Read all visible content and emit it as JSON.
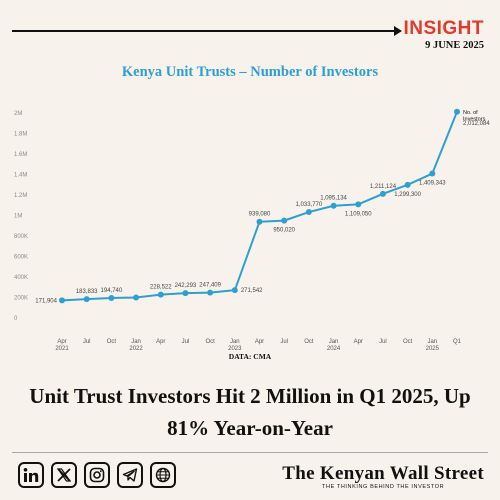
{
  "header": {
    "brand": "INSIGHT",
    "date": "9 JUNE 2025"
  },
  "chart_data": {
    "type": "line",
    "title": "Kenya Unit Trusts – Number of Investors",
    "xlabel": "",
    "ylabel": "",
    "ylim": [
      0,
      2000000
    ],
    "yticks": [
      0,
      200000,
      400000,
      600000,
      800000,
      1000000,
      1200000,
      1400000,
      1600000,
      1800000,
      2000000
    ],
    "ytick_labels": [
      "0",
      "200K",
      "400K",
      "600K",
      "800K",
      "1M",
      "1.2M",
      "1.4M",
      "1.6M",
      "1.8M",
      "2M"
    ],
    "xticks": [
      {
        "label": "Apr",
        "sub": "2021"
      },
      {
        "label": "Jul",
        "sub": ""
      },
      {
        "label": "Oct",
        "sub": ""
      },
      {
        "label": "Jan",
        "sub": "2022"
      },
      {
        "label": "Apr",
        "sub": ""
      },
      {
        "label": "Jul",
        "sub": ""
      },
      {
        "label": "Oct",
        "sub": ""
      },
      {
        "label": "Jan",
        "sub": "2023"
      },
      {
        "label": "Apr",
        "sub": ""
      },
      {
        "label": "Jul",
        "sub": ""
      },
      {
        "label": "Oct",
        "sub": ""
      },
      {
        "label": "Jan",
        "sub": "2024"
      },
      {
        "label": "Apr",
        "sub": ""
      },
      {
        "label": "Jul",
        "sub": ""
      },
      {
        "label": "Oct",
        "sub": ""
      },
      {
        "label": "Jan",
        "sub": "2025"
      },
      {
        "label": "Q1",
        "sub": ""
      }
    ],
    "series": [
      {
        "color": "#2f9fd0",
        "values": [
          171904,
          183833,
          194740,
          200000,
          228522,
          242293,
          247409,
          271542,
          939080,
          950020,
          1033770,
          1095134,
          1109050,
          1211124,
          1299300,
          1409343,
          2012084
        ],
        "labels": [
          "171,904",
          "183,833",
          "194,740",
          "",
          "228,522",
          "242,293",
          "247,409",
          "271,542",
          "939,080",
          "950,020",
          "1,033,770",
          "1,095,134",
          "1,109,050",
          "1,211,124",
          "1,299,300",
          "1,409,343",
          "2,012,084"
        ],
        "label_pos": [
          "left",
          "above",
          "above",
          "",
          "above",
          "above",
          "above",
          "right",
          "above",
          "below",
          "above",
          "above",
          "below",
          "above",
          "below",
          "below",
          "right"
        ]
      }
    ],
    "annotation": "No. of\nInvestors",
    "grid": false,
    "legend": "none"
  },
  "source": "DATA: CMA",
  "headline": "Unit Trust Investors Hit 2 Million in Q1 2025, Up 81% Year-on-Year",
  "socials": [
    {
      "icon": "linkedin-icon"
    },
    {
      "icon": "x-icon"
    },
    {
      "icon": "instagram-icon"
    },
    {
      "icon": "telegram-icon"
    },
    {
      "icon": "website-icon"
    }
  ],
  "masthead": {
    "name": "The Kenyan Wall Street",
    "tagline": "THE THINKING BEHIND THE INVESTOR"
  },
  "colors": {
    "background": "#f7f3ec",
    "accent": "#2f9fd0",
    "brand_red": "#e23b2e"
  }
}
